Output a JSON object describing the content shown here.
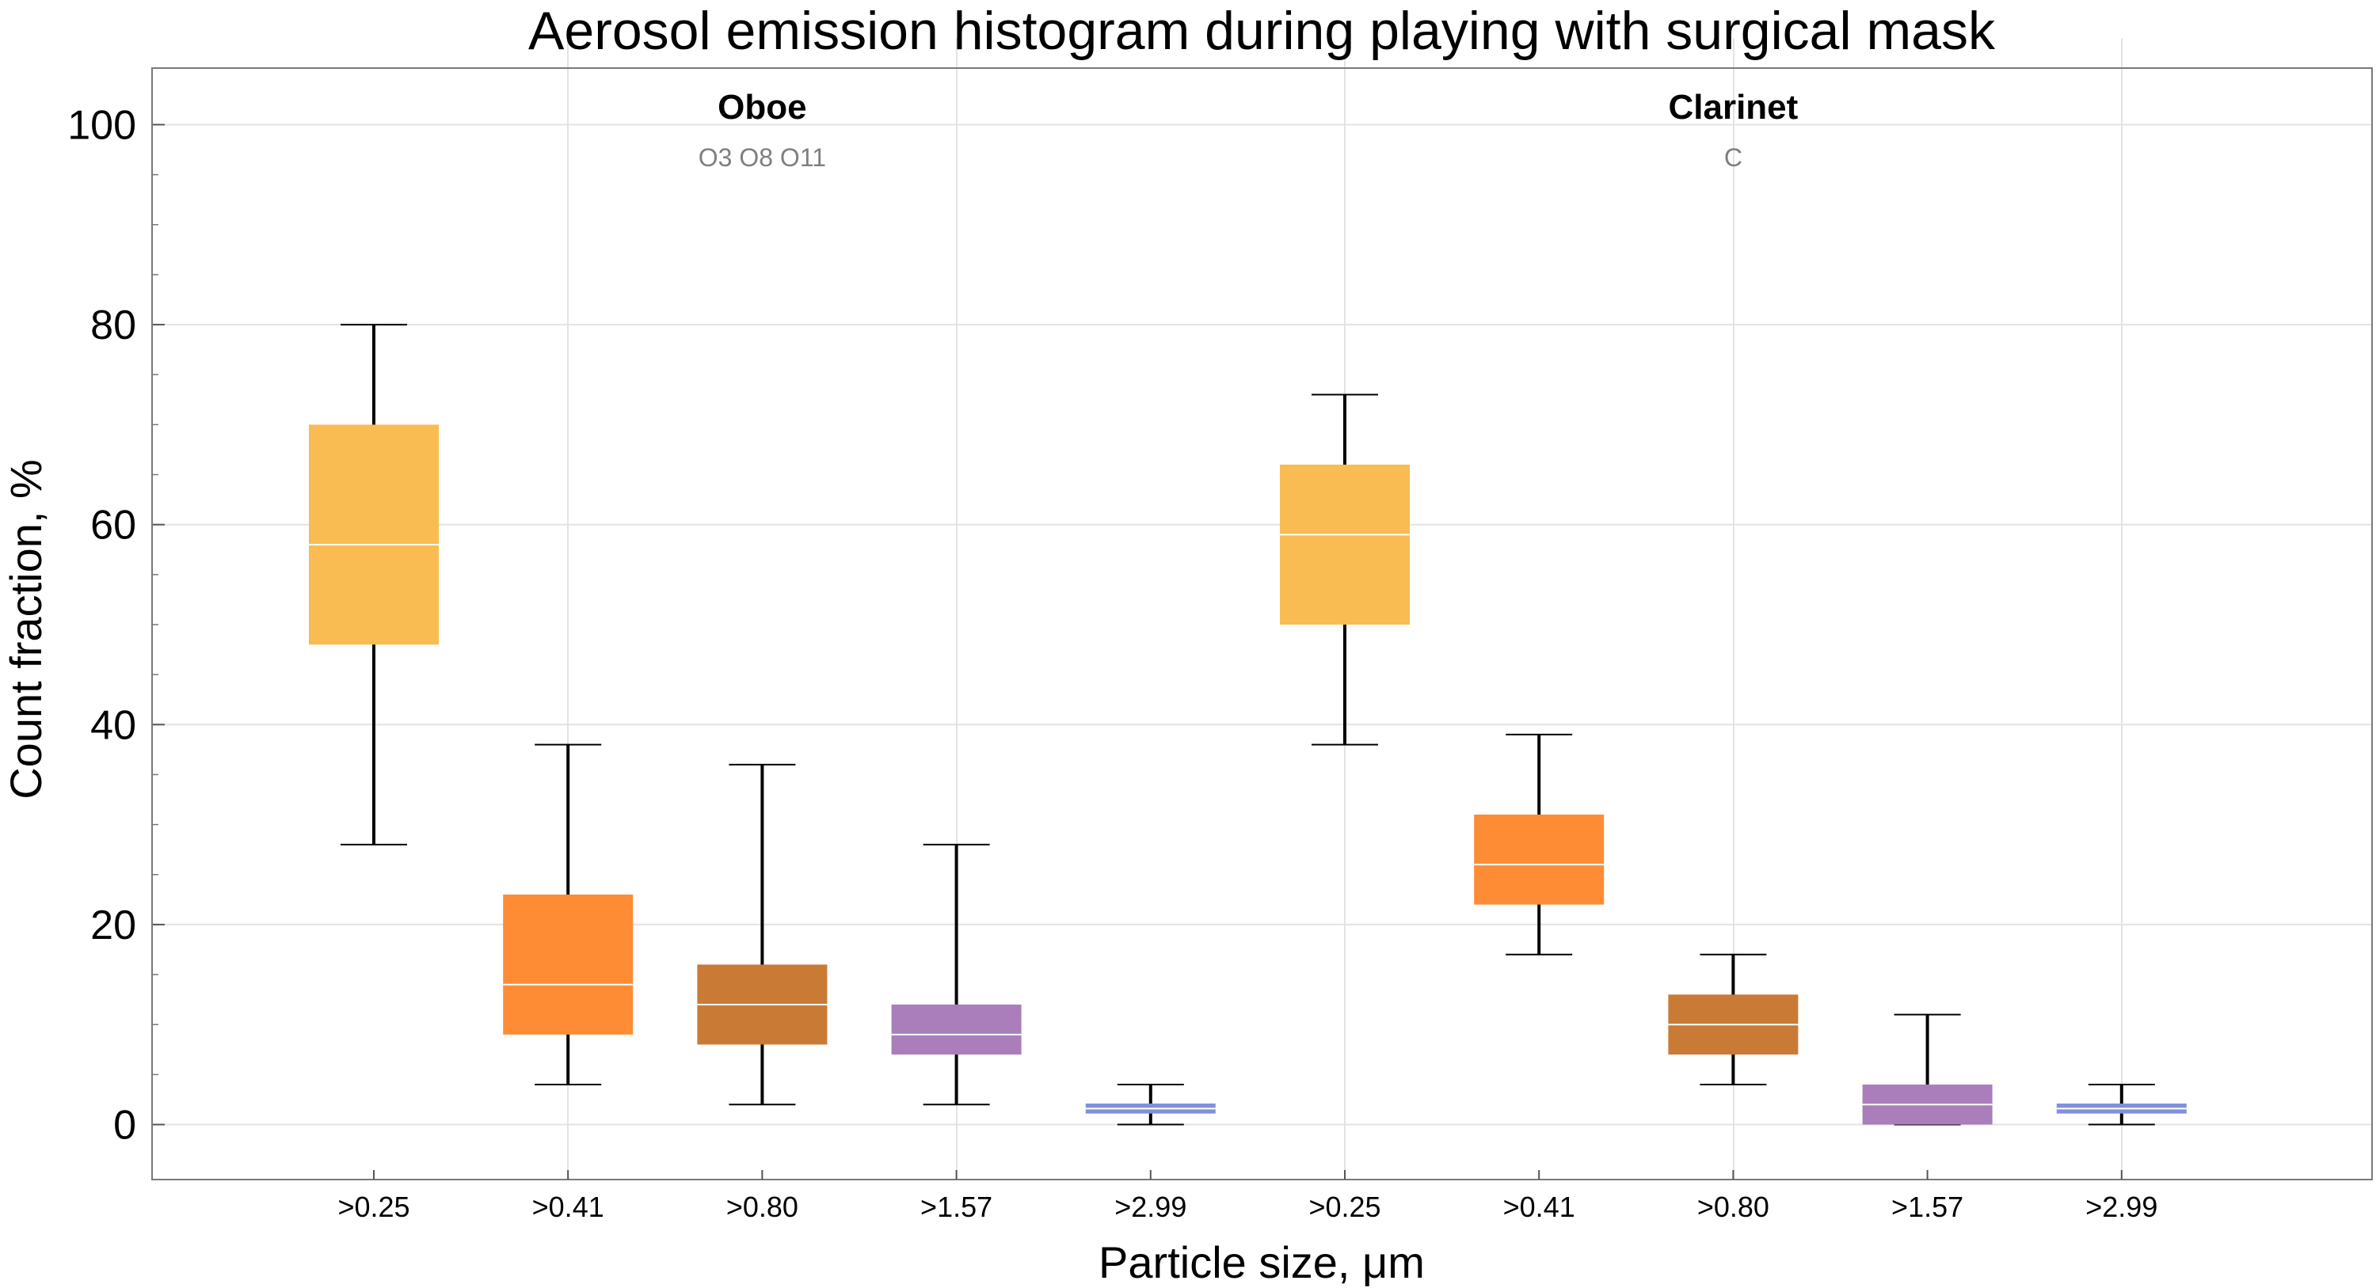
{
  "chart_data": {
    "type": "box",
    "title": "Aerosol emission histogram during playing with surgical mask",
    "xlabel": "Particle size,  μm",
    "ylabel": "Count  fraction,  %",
    "ylim": [
      -5.5,
      105.5
    ],
    "yticks": [
      0,
      20,
      40,
      60,
      80,
      100
    ],
    "grid": true,
    "groups": [
      {
        "name": "Oboe",
        "subtitle": "O3 O8 O11",
        "boxes": [
          {
            "category": ">0.25",
            "min": 28,
            "q1": 48,
            "median": 58,
            "q3": 70,
            "max": 80,
            "color": "#F9BC52"
          },
          {
            "category": ">0.41",
            "min": 4,
            "q1": 9,
            "median": 14,
            "q3": 23,
            "max": 38,
            "color": "#FD8C35"
          },
          {
            "category": ">0.80",
            "min": 2,
            "q1": 8,
            "median": 12,
            "q3": 16,
            "max": 36,
            "color": "#C97A35"
          },
          {
            "category": ">1.57",
            "min": 2,
            "q1": 7,
            "median": 9,
            "q3": 12,
            "max": 28,
            "color": "#A97EBB"
          },
          {
            "category": ">2.99",
            "min": 0,
            "q1": 1.1,
            "median": 1.6,
            "q3": 2.1,
            "max": 4,
            "color": "#8290DB"
          }
        ]
      },
      {
        "name": "Clarinet",
        "subtitle": "C",
        "boxes": [
          {
            "category": ">0.25",
            "min": 38,
            "q1": 50,
            "median": 59,
            "q3": 66,
            "max": 73,
            "color": "#F9BC52"
          },
          {
            "category": ">0.41",
            "min": 17,
            "q1": 22,
            "median": 26,
            "q3": 31,
            "max": 39,
            "color": "#FD8C35"
          },
          {
            "category": ">0.80",
            "min": 4,
            "q1": 7,
            "median": 10,
            "q3": 13,
            "max": 17,
            "color": "#C97A35"
          },
          {
            "category": ">1.57",
            "min": 0,
            "q1": 0,
            "median": 2,
            "q3": 4,
            "max": 11,
            "color": "#A97EBB"
          },
          {
            "category": ">2.99",
            "min": 0,
            "q1": 1.1,
            "median": 1.6,
            "q3": 2.1,
            "max": 4,
            "color": "#8290DB"
          }
        ]
      }
    ]
  }
}
